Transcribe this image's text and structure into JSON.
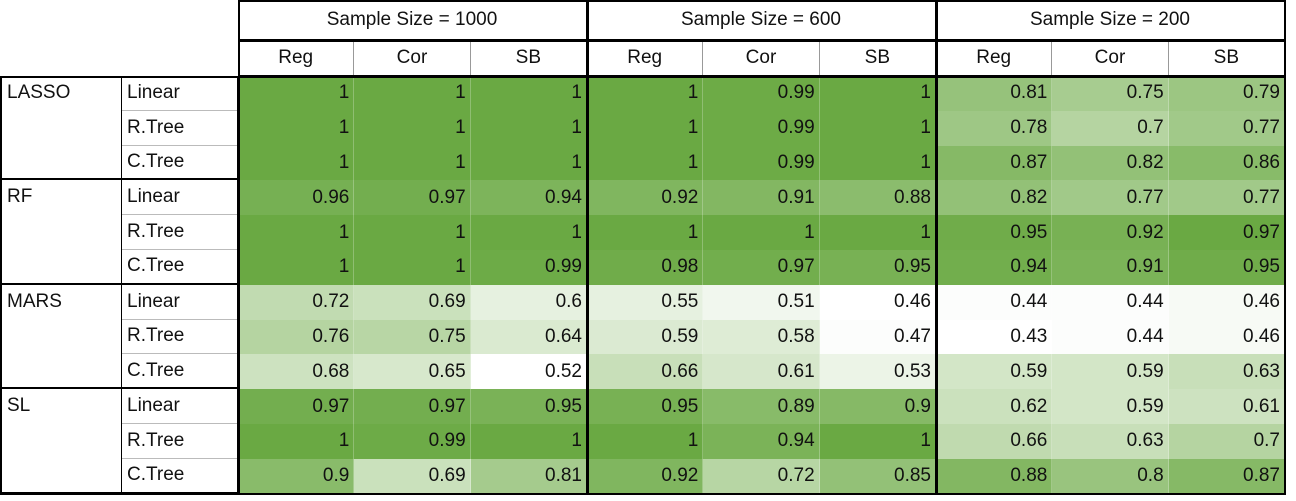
{
  "header": {
    "groups": [
      {
        "title": "Sample Size = 1000",
        "columns": [
          "Reg",
          "Cor",
          "SB"
        ]
      },
      {
        "title": "Sample Size = 600",
        "columns": [
          "Reg",
          "Cor",
          "SB"
        ]
      },
      {
        "title": "Sample Size = 200",
        "columns": [
          "Reg",
          "Cor",
          "SB"
        ]
      }
    ]
  },
  "table": {
    "methods": [
      {
        "name": "LASSO",
        "rows": [
          {
            "model": "Linear",
            "values": [
              1,
              1,
              1,
              1,
              0.99,
              1,
              0.81,
              0.75,
              0.79
            ]
          },
          {
            "model": "R.Tree",
            "values": [
              1,
              1,
              1,
              1,
              0.99,
              1,
              0.78,
              0.7,
              0.77
            ]
          },
          {
            "model": "C.Tree",
            "values": [
              1,
              1,
              1,
              1,
              0.99,
              1,
              0.87,
              0.82,
              0.86
            ]
          }
        ]
      },
      {
        "name": "RF",
        "rows": [
          {
            "model": "Linear",
            "values": [
              0.96,
              0.97,
              0.94,
              0.92,
              0.91,
              0.88,
              0.82,
              0.77,
              0.77
            ]
          },
          {
            "model": "R.Tree",
            "values": [
              1,
              1,
              1,
              1,
              1,
              1,
              0.95,
              0.92,
              0.97
            ]
          },
          {
            "model": "C.Tree",
            "values": [
              1,
              1,
              0.99,
              0.98,
              0.97,
              0.95,
              0.94,
              0.91,
              0.95
            ]
          }
        ]
      },
      {
        "name": "MARS",
        "rows": [
          {
            "model": "Linear",
            "values": [
              0.72,
              0.69,
              0.6,
              0.55,
              0.51,
              0.46,
              0.44,
              0.44,
              0.46
            ]
          },
          {
            "model": "R.Tree",
            "values": [
              0.76,
              0.75,
              0.64,
              0.59,
              0.58,
              0.47,
              0.43,
              0.44,
              0.46
            ]
          },
          {
            "model": "C.Tree",
            "values": [
              0.68,
              0.65,
              0.52,
              0.66,
              0.61,
              0.53,
              0.59,
              0.59,
              0.63
            ]
          }
        ]
      },
      {
        "name": "SL",
        "rows": [
          {
            "model": "Linear",
            "values": [
              0.97,
              0.97,
              0.95,
              0.95,
              0.89,
              0.9,
              0.62,
              0.59,
              0.61
            ]
          },
          {
            "model": "R.Tree",
            "values": [
              1,
              0.99,
              1,
              1,
              0.94,
              1,
              0.66,
              0.63,
              0.7
            ]
          },
          {
            "model": "C.Tree",
            "values": [
              0.9,
              0.69,
              0.81,
              0.92,
              0.72,
              0.85,
              0.88,
              0.8,
              0.87
            ]
          }
        ]
      }
    ]
  }
}
